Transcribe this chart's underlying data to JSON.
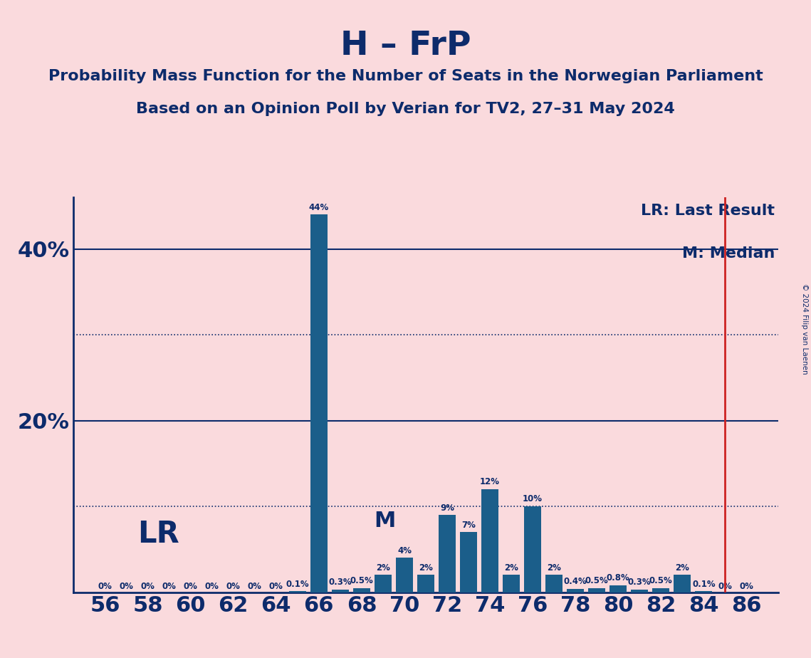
{
  "title": "H – FrP",
  "subtitle1": "Probability Mass Function for the Number of Seats in the Norwegian Parliament",
  "subtitle2": "Based on an Opinion Poll by Verian for TV2, 27–31 May 2024",
  "copyright": "© 2024 Filip van Laenen",
  "seats": [
    56,
    57,
    58,
    59,
    60,
    61,
    62,
    63,
    64,
    65,
    66,
    67,
    68,
    69,
    70,
    71,
    72,
    73,
    74,
    75,
    76,
    77,
    78,
    79,
    80,
    81,
    82,
    83,
    84,
    85,
    86
  ],
  "values": [
    0.0,
    0.0,
    0.0,
    0.0,
    0.0,
    0.0,
    0.0,
    0.0,
    0.0,
    0.1,
    44.0,
    0.3,
    0.5,
    2.0,
    4.0,
    2.0,
    9.0,
    7.0,
    12.0,
    2.0,
    10.0,
    2.0,
    0.4,
    0.5,
    0.8,
    0.3,
    0.5,
    2.0,
    0.1,
    0.0,
    0.0
  ],
  "labels": [
    "0%",
    "0%",
    "0%",
    "0%",
    "0%",
    "0%",
    "0%",
    "0%",
    "0%",
    "0.1%",
    "44%",
    "0.3%",
    "0.5%",
    "2%",
    "4%",
    "2%",
    "9%",
    "7%",
    "12%",
    "2%",
    "10%",
    "2%",
    "0.4%",
    "0.5%",
    "0.8%",
    "0.3%",
    "0.5%",
    "2%",
    "0.1%",
    "0%",
    "0%"
  ],
  "bar_color": "#1b5e8a",
  "background_color": "#fadadd",
  "text_color": "#0d2b6b",
  "lr_line_color": "#cc2222",
  "lr_seat": 85,
  "median_seat": 70,
  "ylim": [
    0,
    46
  ],
  "dotted_lines": [
    10,
    30
  ],
  "solid_lines": [
    20,
    40
  ],
  "lr_label": "LR: Last Result",
  "median_label": "M: Median",
  "lr_annotation": "LR",
  "median_annotation": "M",
  "label_fontsize": 8.5,
  "tick_fontsize": 22,
  "ytick_fontsize": 22,
  "legend_fontsize": 16,
  "annotation_fontsize_lr": 30,
  "annotation_fontsize_m": 22,
  "title_fontsize": 34,
  "subtitle_fontsize": 16
}
